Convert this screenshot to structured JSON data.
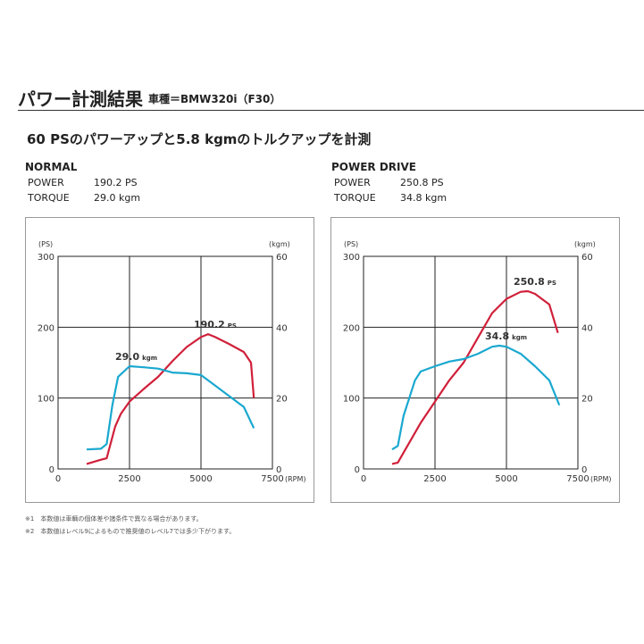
{
  "header": {
    "title": "パワー計測結果",
    "subtitle": "車種＝BMW320i（F30）"
  },
  "headline": "60 PSのパワーアップと5.8 kgmのトルクアップを計測",
  "footnotes": [
    "※1　本数値は車輌の個体差や諸条件で異なる場合があります。",
    "※2　本数値はレベル9によるもので推奨値のレベル7では多少下がります。"
  ],
  "colors": {
    "power": "#d0203a",
    "torque": "#1aa8d0"
  },
  "chart_data": [
    {
      "type": "line",
      "panel_title": "NORMAL",
      "stats": [
        {
          "label": "POWER",
          "value": "190.2 PS"
        },
        {
          "label": "TORQUE",
          "value": "29.0 kgm"
        }
      ],
      "xlabel": "(RPM)",
      "ylabel_left": "(PS)",
      "ylabel_right": "(kgm)",
      "xlim": [
        0,
        7500
      ],
      "ylim_left": [
        0,
        300
      ],
      "ylim_right": [
        0,
        60
      ],
      "xticks": [
        "0",
        "2500",
        "5000",
        "7500"
      ],
      "yticks_left": [
        "0",
        "100",
        "200",
        "300"
      ],
      "yticks_right": [
        "0",
        "20",
        "40",
        "60"
      ],
      "grid": true,
      "series": [
        {
          "axis": "left",
          "color": "#d0203a",
          "x": [
            1000,
            1500,
            1700,
            2000,
            2200,
            2500,
            3000,
            3500,
            4000,
            4500,
            5000,
            5250,
            5500,
            6000,
            6500,
            6750,
            6850
          ],
          "y": [
            7,
            13,
            15,
            60,
            78,
            95,
            113,
            130,
            152,
            172,
            186,
            190.2,
            186,
            176,
            165,
            150,
            100
          ]
        },
        {
          "axis": "right",
          "color": "#1aa8d0",
          "x": [
            1000,
            1500,
            1700,
            1900,
            2100,
            2500,
            3000,
            3500,
            4000,
            4500,
            5000,
            5500,
            6000,
            6500,
            6850
          ],
          "y": [
            5.5,
            5.7,
            7,
            18,
            26,
            29,
            28.7,
            28.3,
            27.2,
            27,
            26.5,
            23.5,
            20.5,
            17.5,
            11.5
          ]
        }
      ],
      "annotations": [
        {
          "value": "190.2",
          "unit": "PS",
          "axis": "left",
          "x": 5250,
          "y": 190.2
        },
        {
          "value": "29.0",
          "unit": "kgm",
          "axis": "right",
          "x": 2500,
          "y": 29
        }
      ]
    },
    {
      "type": "line",
      "panel_title": "POWER DRIVE",
      "stats": [
        {
          "label": "POWER",
          "value": "250.8 PS"
        },
        {
          "label": "TORQUE",
          "value": "34.8 kgm"
        }
      ],
      "xlabel": "(RPM)",
      "ylabel_left": "(PS)",
      "ylabel_right": "(kgm)",
      "xlim": [
        0,
        7500
      ],
      "ylim_left": [
        0,
        300
      ],
      "ylim_right": [
        0,
        60
      ],
      "xticks": [
        "0",
        "2500",
        "5000",
        "7500"
      ],
      "yticks_left": [
        "0",
        "100",
        "200",
        "300"
      ],
      "yticks_right": [
        "0",
        "20",
        "40",
        "60"
      ],
      "grid": true,
      "series": [
        {
          "axis": "left",
          "color": "#d0203a",
          "x": [
            1000,
            1200,
            1500,
            2000,
            2500,
            3000,
            3500,
            4000,
            4500,
            5000,
            5500,
            5750,
            6000,
            6500,
            6800
          ],
          "y": [
            7,
            9,
            30,
            65,
            95,
            125,
            150,
            185,
            220,
            240,
            250,
            250.8,
            247,
            232,
            192
          ]
        },
        {
          "axis": "right",
          "color": "#1aa8d0",
          "x": [
            1000,
            1200,
            1400,
            1600,
            1800,
            2000,
            2500,
            3000,
            3500,
            4000,
            4500,
            4750,
            5000,
            5500,
            6000,
            6500,
            6850
          ],
          "y": [
            5.5,
            6.5,
            15,
            20,
            25,
            27.5,
            29,
            30.3,
            31,
            32.5,
            34.5,
            34.8,
            34.5,
            32.5,
            29,
            25,
            18
          ]
        }
      ],
      "annotations": [
        {
          "value": "250.8",
          "unit": "PS",
          "axis": "left",
          "x": 5750,
          "y": 250.8
        },
        {
          "value": "34.8",
          "unit": "kgm",
          "axis": "right",
          "x": 4750,
          "y": 34.8
        }
      ]
    }
  ]
}
